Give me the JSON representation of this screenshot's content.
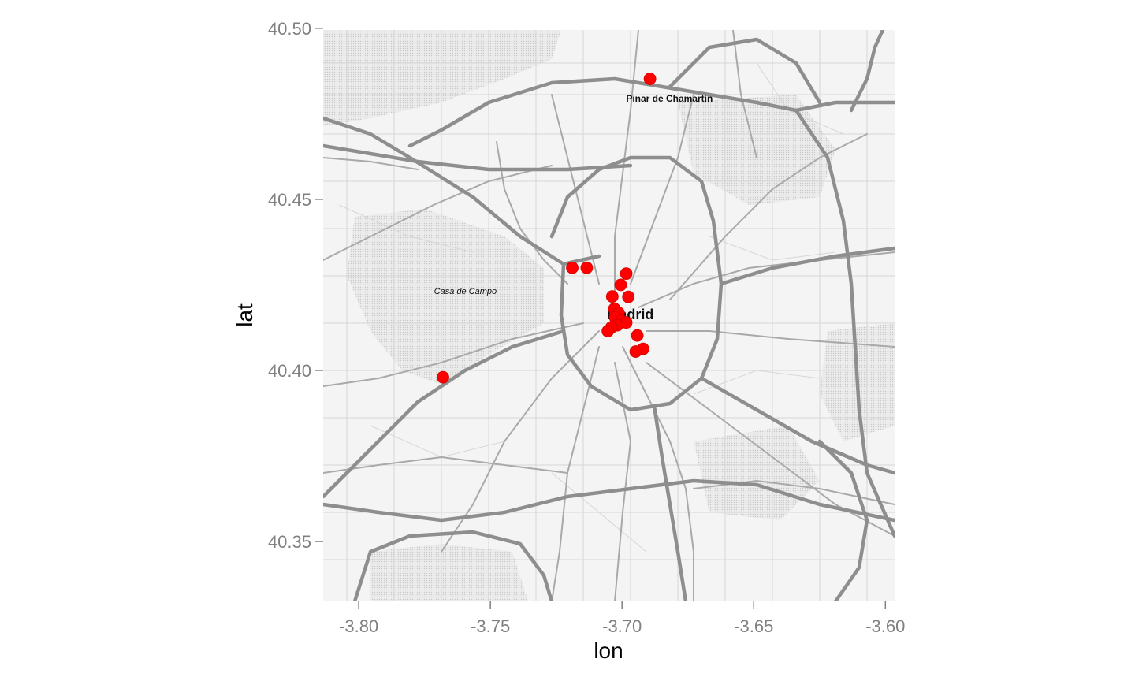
{
  "chart_data": {
    "type": "scatter",
    "xlabel": "lon",
    "ylabel": "lat",
    "xlim": [
      -3.8135,
      -3.5965
    ],
    "ylim": [
      40.3325,
      40.4995
    ],
    "x_ticks": [
      {
        "value": -3.8,
        "label": "-3.80"
      },
      {
        "value": -3.75,
        "label": "-3.75"
      },
      {
        "value": -3.7,
        "label": "-3.70"
      },
      {
        "value": -3.65,
        "label": "-3.65"
      },
      {
        "value": -3.6,
        "label": "-3.60"
      }
    ],
    "y_ticks": [
      {
        "value": 40.35,
        "label": "40.35"
      },
      {
        "value": 40.4,
        "label": "40.40"
      },
      {
        "value": 40.45,
        "label": "40.45"
      },
      {
        "value": 40.5,
        "label": "40.50"
      }
    ],
    "grid": false,
    "legend": "none",
    "basemap": "grayscale street map",
    "point_color": "#ff0000",
    "points": [
      {
        "lon": -3.6894,
        "lat": 40.4852
      },
      {
        "lon": -3.7189,
        "lat": 40.43
      },
      {
        "lon": -3.7134,
        "lat": 40.43
      },
      {
        "lon": -3.6984,
        "lat": 40.4283
      },
      {
        "lon": -3.7005,
        "lat": 40.425
      },
      {
        "lon": -3.6976,
        "lat": 40.4215
      },
      {
        "lon": -3.7037,
        "lat": 40.4216
      },
      {
        "lon": -3.7029,
        "lat": 40.418
      },
      {
        "lon": -3.7013,
        "lat": 40.4168
      },
      {
        "lon": -3.7026,
        "lat": 40.4155
      },
      {
        "lon": -3.7002,
        "lat": 40.4145
      },
      {
        "lon": -3.6984,
        "lat": 40.414
      },
      {
        "lon": -3.7018,
        "lat": 40.4132
      },
      {
        "lon": -3.704,
        "lat": 40.4126
      },
      {
        "lon": -3.7054,
        "lat": 40.4115
      },
      {
        "lon": -3.6942,
        "lat": 40.4102
      },
      {
        "lon": -3.692,
        "lat": 40.4063
      },
      {
        "lon": -3.6948,
        "lat": 40.4055
      },
      {
        "lon": -3.768,
        "lat": 40.398
      }
    ]
  },
  "map_labels": [
    {
      "text": "Pinar de Chamartín",
      "lon": -3.682,
      "lat": 40.4785,
      "size": 12,
      "bold": true,
      "italic": false
    },
    {
      "text": "Casa de Campo",
      "lon": -3.7595,
      "lat": 40.4223,
      "size": 11,
      "bold": false,
      "italic": true
    },
    {
      "text": "Madrid",
      "lon": -3.6968,
      "lat": 40.415,
      "size": 18,
      "bold": true,
      "italic": false
    }
  ]
}
